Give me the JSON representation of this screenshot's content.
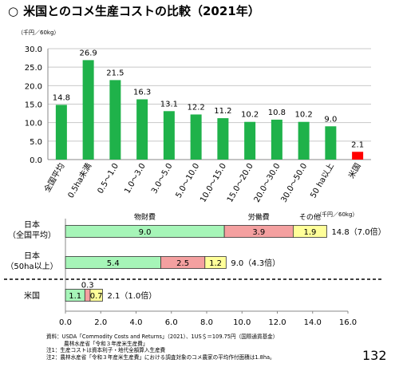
{
  "title": "米国とのコメ生産コストの比較（2021年）",
  "title_marker": "○",
  "page_number": "132",
  "colors": {
    "bar_green": "#1fb24a",
    "bar_red": "#ff0000",
    "seg_green": "#a6f5b8",
    "seg_pink": "#f4a0a0",
    "seg_yellow": "#ffff99",
    "grid": "#c8c8c8"
  },
  "notes": [
    "資料：USDA「Commodity Costs and Returns」（2021）、1US＄＝109.75円（国際通貨基金）",
    "農林水産省「令和３年産米生産費」",
    "注1：生産コストは資本利子・地代全額算入生産費",
    "注2：農林水産省「令和３年産米生産費」における調査対象のコメ農家の平均作付面積は1.8ha。"
  ],
  "chart_data": [
    {
      "type": "bar",
      "unit": "（千円／60kg）",
      "categories": [
        "全国平均",
        "0.5ha未満",
        "0.5～1.0",
        "1.0～3.0",
        "3.0～5.0",
        "5.0～10.0",
        "10.0～15.0",
        "15.0～20.0",
        "20.0～30.0",
        "30.0～50.0",
        "50 ha以上",
        "米国"
      ],
      "values": [
        14.8,
        26.9,
        21.5,
        16.3,
        13.1,
        12.2,
        11.2,
        10.2,
        10.8,
        10.2,
        9.0,
        2.1
      ],
      "value_labels": [
        "14.8",
        "26.9",
        "21.5",
        "16.3",
        "13.1",
        "12.2",
        "11.2",
        "10.2",
        "10.8",
        "10.2",
        "9.0",
        "2.1"
      ],
      "highlight_index": 11,
      "ylim": [
        0,
        30
      ],
      "yticks": [
        "0.0",
        "5.0",
        "10.0",
        "15.0",
        "20.0",
        "25.0",
        "30.0"
      ],
      "grid": true
    },
    {
      "type": "stacked_bar_horizontal",
      "unit": "（千円／60kg）",
      "series_names": [
        "物財費",
        "労働費",
        "その他"
      ],
      "rows": [
        {
          "label": [
            "日本",
            "（全国平均）"
          ],
          "segments": [
            9.0,
            3.9,
            1.9
          ],
          "segment_labels": [
            "9.0",
            "3.9",
            "1.9"
          ],
          "total": "14.8（7.0倍）"
        },
        {
          "label": [
            "日本",
            "（50ha以上）"
          ],
          "segments": [
            5.4,
            2.5,
            1.2
          ],
          "segment_labels": [
            "5.4",
            "2.5",
            "1.2"
          ],
          "total": "9.0（4.3倍）"
        },
        {
          "label": [
            "米国"
          ],
          "segments": [
            1.1,
            0.3,
            0.7
          ],
          "segment_labels": [
            "1.1",
            "0.3",
            "0.7"
          ],
          "total": "2.1（1.0倍）"
        }
      ],
      "xlim": [
        0,
        16
      ],
      "xticks": [
        "0.0",
        "2.0",
        "4.0",
        "6.0",
        "8.0",
        "10.0",
        "12.0",
        "14.0",
        "16.0"
      ]
    }
  ]
}
